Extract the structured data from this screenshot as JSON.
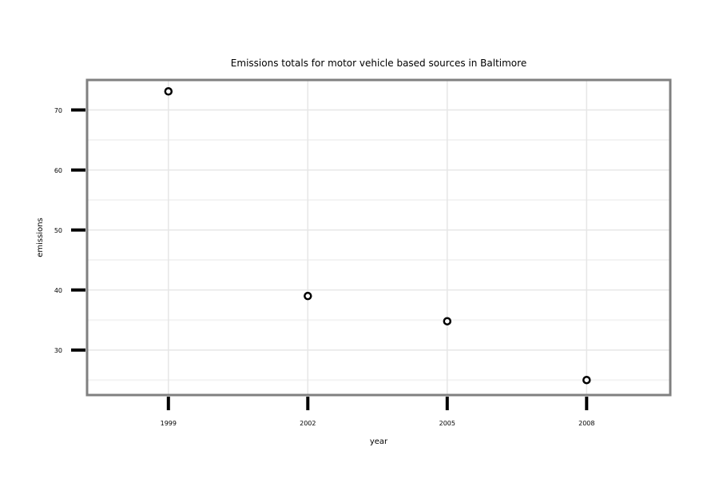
{
  "chart_data": {
    "type": "scatter",
    "title": "Emissions totals for motor vehicle based sources in Baltimore",
    "xlabel": "year",
    "ylabel": "emissions",
    "x": [
      1999,
      2002,
      2005,
      2008
    ],
    "y": [
      73.1,
      39.0,
      34.8,
      25.0
    ],
    "x_ticks": [
      "1999",
      "2002",
      "2005",
      "2008"
    ],
    "y_ticks": [
      30,
      40,
      50,
      60,
      70
    ],
    "xlim": [
      1997.25,
      2009.8
    ],
    "ylim": [
      22.5,
      75.0
    ],
    "grid": true,
    "legend": "none",
    "colors": {
      "marker_stroke": "#000000",
      "marker_fill": "#ffffff",
      "grid_major": "#e6e6e6",
      "grid_minor": "#f3f3f3",
      "panel_border": "#808080",
      "tick": "#000000"
    }
  }
}
